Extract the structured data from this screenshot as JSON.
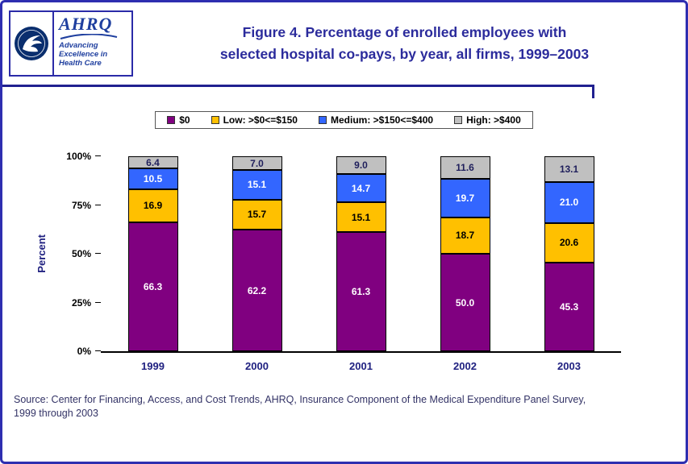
{
  "header": {
    "title_line1": "Figure 4. Percentage of enrolled employees with",
    "title_line2": "selected hospital co-pays, by year, all firms, 1999–2003",
    "logo": {
      "ahrq_name": "AHRQ",
      "tagline_line1": "Advancing",
      "tagline_line2": "Excellence in",
      "tagline_line3": "Health Care"
    }
  },
  "chart_data": {
    "type": "bar",
    "stacked": true,
    "title": "Figure 4. Percentage of enrolled employees with selected hospital co-pays, by year, all firms, 1999–2003",
    "categories": [
      "1999",
      "2000",
      "2001",
      "2002",
      "2003"
    ],
    "series": [
      {
        "name": "$0",
        "color": "#800080",
        "label_color": "#FFFFFF",
        "values": [
          66.3,
          62.2,
          61.3,
          50.0,
          45.3
        ]
      },
      {
        "name": "Low: >$0<=$150",
        "color": "#FFC000",
        "label_color": "#000000",
        "values": [
          16.9,
          15.7,
          15.1,
          18.7,
          20.6
        ]
      },
      {
        "name": "Medium: >$150<=$400",
        "color": "#3366FF",
        "label_color": "#FFFFFF",
        "values": [
          10.5,
          15.1,
          14.7,
          19.7,
          21.0
        ]
      },
      {
        "name": "High: >$400",
        "color": "#C0C0C0",
        "label_color": "#1F1F5C",
        "values": [
          6.4,
          7.0,
          9.0,
          11.6,
          13.1
        ]
      }
    ],
    "xlabel": "",
    "ylabel": "Percent",
    "yticks": [
      "0%",
      "25%",
      "50%",
      "75%",
      "100%"
    ],
    "ylim": [
      0,
      100
    ],
    "grid": false,
    "legend_position": "top"
  },
  "footer": {
    "source_line1": "Source: Center for Financing, Access, and Cost Trends, AHRQ, Insurance Component of the Medical Expenditure Panel Survey,",
    "source_line2": "1999 through 2003"
  }
}
